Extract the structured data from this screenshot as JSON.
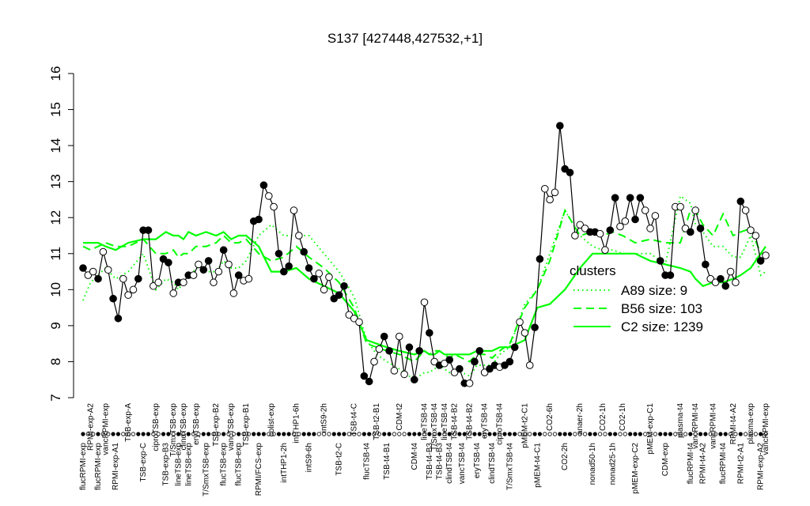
{
  "chart_data": {
    "type": "line",
    "title": "S137 [427448,427532,+1]",
    "ylim": [
      7,
      16
    ],
    "yticks": [
      7,
      8,
      9,
      10,
      11,
      12,
      13,
      14,
      15,
      16
    ],
    "point_color": "#000000",
    "groups": [
      {
        "label": "flucRPMI-exp",
        "values": [
          10.6
        ]
      },
      {
        "label": "RPMI-exp-A2",
        "values": [
          10.4,
          10.5
        ]
      },
      {
        "label": "flucRPMI-exp",
        "values": [
          10.3
        ]
      },
      {
        "label": "vancRPMI-exp",
        "values": [
          11.05,
          10.55
        ]
      },
      {
        "label": "RPMI-exp-A1",
        "values": [
          9.75,
          9.2
        ]
      },
      {
        "label": "TSB-exp-A",
        "values": [
          10.3,
          9.85,
          10.0
        ]
      },
      {
        "label": "TSB-exp-C",
        "values": [
          10.3,
          11.65,
          11.65
        ]
      },
      {
        "label": "ciproTSB-exp",
        "values": [
          10.1,
          10.2
        ]
      },
      {
        "label": "TSB-exp-B3",
        "values": [
          10.85,
          10.75
        ]
      },
      {
        "label": "T/SmxTSB-exp",
        "values": [
          9.9
        ]
      },
      {
        "label": "lineTSB-exp",
        "values": [
          10.2
        ]
      },
      {
        "label": "clindTSB-exp",
        "values": [
          10.2
        ]
      },
      {
        "label": "lineTSB-exp",
        "values": [
          10.4
        ]
      },
      {
        "label": "eryTSB-exp",
        "values": [
          10.4,
          10.7
        ]
      },
      {
        "label": "T/SmxTSB-exp",
        "values": [
          10.55,
          10.8
        ]
      },
      {
        "label": "TSB-exp-B2",
        "values": [
          10.2,
          10.5
        ]
      },
      {
        "label": "flucTSB-exp",
        "values": [
          11.1
        ]
      },
      {
        "label": "vancTSB-exp",
        "values": [
          10.7,
          9.9
        ]
      },
      {
        "label": "flucTSB-exp",
        "values": [
          10.4
        ]
      },
      {
        "label": "TSB-exp-B1",
        "values": [
          10.25,
          10.3
        ]
      },
      {
        "label": "RPMI/FCS-exp",
        "values": [
          11.9,
          11.95,
          12.9
        ]
      },
      {
        "label": "colist-exp",
        "values": [
          12.6,
          12.3
        ]
      },
      {
        "label": "intTHP1-2h",
        "values": [
          11.0,
          10.5,
          10.65
        ]
      },
      {
        "label": "intTHP1-6h",
        "values": [
          12.2,
          11.5
        ]
      },
      {
        "label": "intS9-6h",
        "values": [
          11.05,
          10.6,
          10.3
        ]
      },
      {
        "label": "intS9-2h",
        "values": [
          10.45,
          10.0,
          10.35
        ]
      },
      {
        "label": "TSB-t2-C",
        "values": [
          9.75,
          9.85,
          10.1
        ]
      },
      {
        "label": "TSB-t4-C",
        "values": [
          9.3,
          9.2,
          9.1
        ]
      },
      {
        "label": "flucTSB-t4",
        "values": [
          7.6,
          7.45
        ]
      },
      {
        "label": "TSB-t2-B1",
        "values": [
          8.0,
          8.35
        ]
      },
      {
        "label": "TSB-t4-B1",
        "values": [
          8.7,
          8.3
        ]
      },
      {
        "label": "CDM-t2",
        "values": [
          7.75,
          8.7,
          7.65
        ]
      },
      {
        "label": "CDM-t4",
        "values": [
          8.4,
          7.5,
          8.3
        ]
      },
      {
        "label": "lineTSB-t4",
        "values": [
          9.65
        ]
      },
      {
        "label": "TSB-t4-B3",
        "values": [
          8.8
        ]
      },
      {
        "label": "T/SmxTSB-t4",
        "values": [
          8.0
        ]
      },
      {
        "label": "TSB-t4-B3",
        "values": [
          7.9
        ]
      },
      {
        "label": "lineTSB-t4",
        "values": [
          7.95
        ]
      },
      {
        "label": "clindTSB-t4",
        "values": [
          8.05
        ]
      },
      {
        "label": "TSB-t4-B2",
        "values": [
          7.7
        ]
      },
      {
        "label": "vancTSB-t4",
        "values": [
          7.8,
          7.4
        ]
      },
      {
        "label": "TSB-t4-B2",
        "values": [
          7.4
        ]
      },
      {
        "label": "eryTSB-t4",
        "values": [
          8.0,
          8.3
        ]
      },
      {
        "label": "eryTSB-t4",
        "values": [
          7.7
        ]
      },
      {
        "label": "clindTSB-t4",
        "values": [
          7.8,
          7.9
        ]
      },
      {
        "label": "ciproTSB-t4",
        "values": [
          7.85
        ]
      },
      {
        "label": "T/SmxTSB-t4",
        "values": [
          7.9,
          8.0,
          8.4
        ]
      },
      {
        "label": "pMEM-t2-C1",
        "values": [
          9.1,
          8.8,
          7.9
        ]
      },
      {
        "label": "pMEM-t4-C1",
        "values": [
          8.95,
          10.85
        ]
      },
      {
        "label": "CO2-6h",
        "values": [
          12.8,
          12.5,
          12.7
        ]
      },
      {
        "label": "CO2-2h",
        "values": [
          14.55,
          13.35,
          13.25
        ]
      },
      {
        "label": "anaer-2h",
        "values": [
          11.5,
          11.8,
          11.7
        ]
      },
      {
        "label": "nonad50-1h",
        "values": [
          11.6,
          11.6
        ]
      },
      {
        "label": "CO2-1h",
        "values": [
          11.55,
          11.1
        ]
      },
      {
        "label": "nonad25-1h",
        "values": [
          11.65,
          12.55
        ]
      },
      {
        "label": "CO2-1h",
        "values": [
          11.75,
          11.9
        ]
      },
      {
        "label": "pMEM-exp-C2",
        "values": [
          12.55,
          11.95,
          12.55
        ]
      },
      {
        "label": "pMEM-exp-C1",
        "values": [
          12.2,
          11.7,
          12.05
        ]
      },
      {
        "label": "CDM-exp",
        "values": [
          10.8,
          10.4,
          10.4
        ]
      },
      {
        "label": "plasma-t4",
        "values": [
          12.3,
          12.3,
          11.7
        ]
      },
      {
        "label": "flucRPMI-t4",
        "values": [
          11.6
        ]
      },
      {
        "label": "vancRPMI-t4",
        "values": [
          12.2
        ]
      },
      {
        "label": "RPMI-t4-A2",
        "values": [
          11.7,
          10.7
        ]
      },
      {
        "label": "vancRPMI-t4",
        "values": [
          10.3,
          10.2
        ]
      },
      {
        "label": "flucRPMI-t4",
        "values": [
          10.3,
          10.1
        ]
      },
      {
        "label": "RPMI-t4-A2",
        "values": [
          10.5,
          10.2
        ]
      },
      {
        "label": "RPMI-t2-A1",
        "values": [
          12.45
        ]
      },
      {
        "label": "plasma-exp",
        "values": [
          12.2,
          11.65,
          11.5
        ]
      },
      {
        "label": "RPMI-exp-A2",
        "values": [
          10.8
        ]
      },
      {
        "label": "vancRPMI-exp",
        "values": [
          10.95
        ]
      }
    ],
    "legend_title": "clusters",
    "legend_position": "right",
    "series": [
      {
        "name": "A89 size: 9",
        "color": "#00ff00",
        "style": "dotted",
        "values": [
          9.7,
          10.2,
          10.4,
          10.6,
          10.3,
          10.5,
          11.0,
          10.0,
          10.3,
          10.2,
          10.0,
          10.2,
          10.3,
          10.6,
          10.5,
          10.5,
          10.8,
          10.6,
          10.6,
          10.8,
          11.5,
          11.8,
          11.5,
          11.5,
          11.5,
          11.0,
          10.5,
          9.8,
          8.6,
          8.2,
          8.0,
          7.8,
          7.5,
          7.7,
          7.7,
          7.8,
          7.9,
          7.8,
          7.7,
          7.8,
          7.7,
          7.6,
          7.9,
          7.9,
          7.9,
          8.2,
          8.4,
          9.6,
          10.0,
          11.0,
          12.2,
          11.5,
          11.2,
          11.1,
          11.1,
          11.0,
          11.0,
          11.0,
          10.7,
          12.6,
          12.4,
          11.8,
          11.6,
          11.2,
          11.2,
          10.9,
          10.9,
          11.5,
          10.4,
          10.5
        ]
      },
      {
        "name": "B56 size: 103",
        "color": "#00ff00",
        "style": "dashed",
        "values": [
          11.2,
          11.1,
          11.2,
          11.3,
          11.2,
          11.2,
          11.4,
          11.0,
          11.0,
          11.1,
          10.9,
          11.0,
          11.0,
          11.2,
          11.2,
          11.3,
          11.5,
          11.3,
          11.3,
          11.4,
          11.0,
          10.8,
          10.9,
          11.2,
          10.9,
          10.6,
          10.2,
          9.5,
          8.5,
          8.4,
          8.3,
          8.2,
          8.0,
          8.3,
          8.2,
          8.3,
          8.3,
          8.2,
          8.1,
          8.2,
          8.1,
          8.0,
          8.2,
          8.2,
          8.1,
          8.3,
          8.5,
          9.5,
          10.0,
          10.8,
          12.2,
          11.5,
          11.6,
          11.5,
          11.6,
          11.5,
          11.3,
          11.4,
          11.3,
          11.3,
          12.2,
          12.2,
          11.8,
          11.5,
          12.1,
          11.5,
          11.6,
          11.7,
          11.0,
          11.0
        ]
      },
      {
        "name": "C2 size: 1239",
        "color": "#00ff00",
        "style": "solid",
        "values": [
          11.3,
          11.3,
          11.3,
          11.2,
          11.1,
          11.3,
          11.4,
          11.4,
          11.6,
          11.5,
          11.5,
          11.4,
          11.6,
          11.5,
          11.6,
          11.5,
          11.6,
          11.4,
          11.5,
          11.5,
          11.2,
          10.5,
          10.5,
          10.6,
          10.3,
          10.1,
          9.9,
          9.4,
          8.6,
          8.5,
          8.4,
          8.3,
          8.2,
          8.3,
          8.2,
          8.2,
          8.3,
          8.2,
          8.2,
          8.2,
          8.2,
          8.2,
          8.3,
          8.3,
          8.3,
          8.4,
          8.4,
          8.6,
          9.5,
          9.6,
          10.0,
          10.6,
          11.0,
          11.0,
          11.0,
          11.0,
          11.0,
          10.8,
          10.7,
          10.6,
          10.5,
          10.3,
          10.1,
          10.2,
          10.2,
          10.3,
          10.4,
          10.6,
          11.0,
          11.2
        ]
      }
    ]
  }
}
